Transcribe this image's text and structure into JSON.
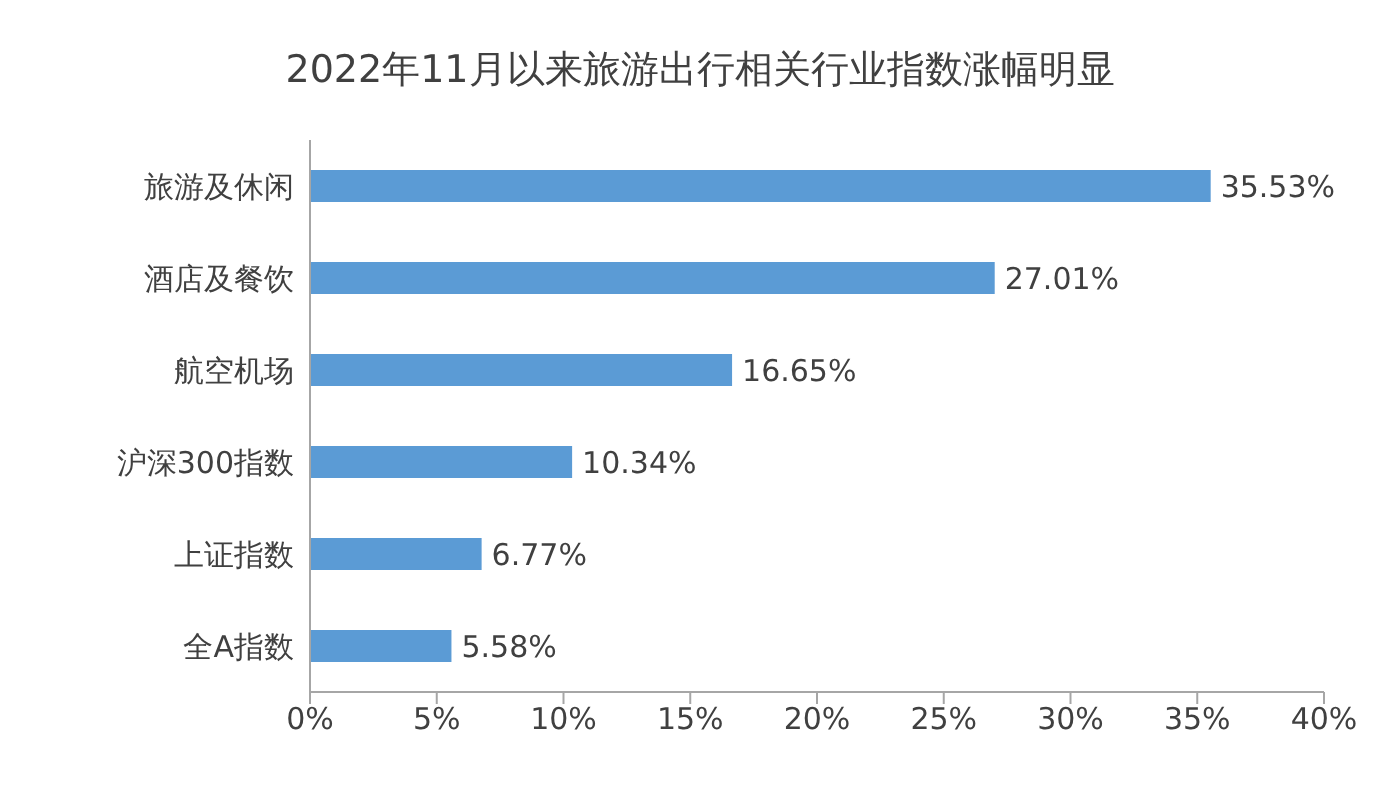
{
  "chart_data": {
    "type": "bar",
    "orientation": "horizontal",
    "title": "2022年11月以来旅游出行相关行业指数涨幅明显",
    "categories": [
      "旅游及休闲",
      "酒店及餐饮",
      "航空机场",
      "沪深300指数",
      "上证指数",
      "全A指数"
    ],
    "values": [
      35.53,
      27.01,
      16.65,
      10.34,
      6.77,
      5.58
    ],
    "value_labels": [
      "35.53%",
      "27.01%",
      "16.65%",
      "10.34%",
      "6.77%",
      "5.58%"
    ],
    "color": "#5b9bd5",
    "xlim": [
      0,
      40
    ],
    "xticks": [
      {
        "value": 0,
        "label": "0%"
      },
      {
        "value": 5,
        "label": "5%"
      },
      {
        "value": 10,
        "label": "10%"
      },
      {
        "value": 15,
        "label": "15%"
      },
      {
        "value": 20,
        "label": "20%"
      },
      {
        "value": 25,
        "label": "25%"
      },
      {
        "value": 30,
        "label": "30%"
      },
      {
        "value": 35,
        "label": "35%"
      },
      {
        "value": 40,
        "label": "40%"
      }
    ],
    "grid": false,
    "legend": false
  }
}
